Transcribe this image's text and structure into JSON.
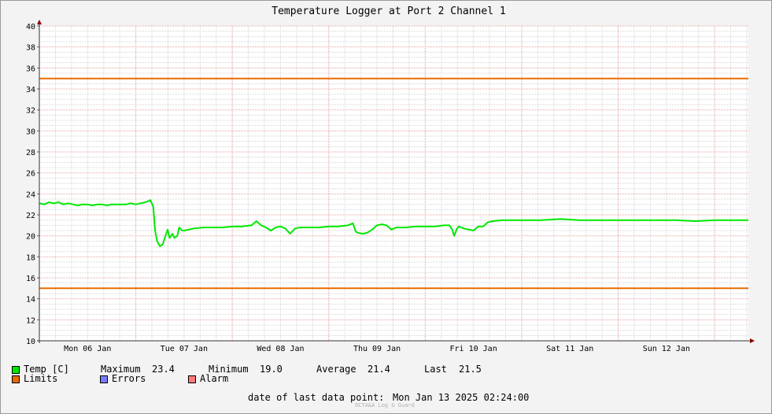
{
  "chart_data": {
    "type": "line",
    "title": "Temperature Logger at Port 2 Channel 1",
    "ylim": [
      10,
      40
    ],
    "yticks": [
      10,
      12,
      14,
      16,
      18,
      20,
      22,
      24,
      26,
      28,
      30,
      32,
      34,
      36,
      38,
      40
    ],
    "xlim": [
      0,
      7.35
    ],
    "xtick_labels": [
      {
        "label": "Mon 06 Jan",
        "pos": 0.5
      },
      {
        "label": "Tue 07 Jan",
        "pos": 1.5
      },
      {
        "label": "Wed 08 Jan",
        "pos": 2.5
      },
      {
        "label": "Thu 09 Jan",
        "pos": 3.5
      },
      {
        "label": "Fri 10 Jan",
        "pos": 4.5
      },
      {
        "label": "Sat 11 Jan",
        "pos": 5.5
      },
      {
        "label": "Sun 12 Jan",
        "pos": 6.5
      }
    ],
    "grid": true,
    "series": [
      {
        "name": "Temp [C]",
        "color": "#00e800",
        "x": [
          0,
          0.05,
          0.1,
          0.15,
          0.2,
          0.25,
          0.3,
          0.35,
          0.4,
          0.45,
          0.5,
          0.55,
          0.6,
          0.65,
          0.7,
          0.75,
          0.8,
          0.85,
          0.9,
          0.95,
          1.0,
          1.05,
          1.1,
          1.15,
          1.18,
          1.2,
          1.22,
          1.25,
          1.28,
          1.3,
          1.33,
          1.35,
          1.38,
          1.4,
          1.43,
          1.45,
          1.48,
          1.5,
          1.55,
          1.6,
          1.7,
          1.8,
          1.9,
          2.0,
          2.1,
          2.2,
          2.25,
          2.3,
          2.35,
          2.4,
          2.45,
          2.5,
          2.55,
          2.6,
          2.65,
          2.7,
          2.8,
          2.9,
          3.0,
          3.1,
          3.2,
          3.25,
          3.28,
          3.3,
          3.35,
          3.4,
          3.45,
          3.5,
          3.55,
          3.6,
          3.65,
          3.7,
          3.8,
          3.9,
          4.0,
          4.1,
          4.2,
          4.25,
          4.28,
          4.3,
          4.33,
          4.35,
          4.4,
          4.45,
          4.5,
          4.55,
          4.6,
          4.65,
          4.7,
          4.8,
          5.0,
          5.2,
          5.4,
          5.6,
          5.8,
          6.0,
          6.2,
          6.4,
          6.6,
          6.8,
          7.0,
          7.2,
          7.35
        ],
        "y": [
          23.1,
          23.0,
          23.2,
          23.1,
          23.2,
          23.0,
          23.1,
          23.0,
          22.9,
          23.0,
          23.0,
          22.9,
          23.0,
          23.0,
          22.9,
          23.0,
          23.0,
          23.0,
          23.0,
          23.1,
          23.0,
          23.1,
          23.2,
          23.4,
          22.8,
          20.5,
          19.5,
          19.0,
          19.2,
          19.8,
          20.6,
          19.8,
          20.2,
          19.8,
          20.0,
          20.8,
          20.5,
          20.5,
          20.6,
          20.7,
          20.8,
          20.8,
          20.8,
          20.9,
          20.9,
          21.0,
          21.4,
          21.0,
          20.8,
          20.5,
          20.8,
          20.9,
          20.7,
          20.2,
          20.7,
          20.8,
          20.8,
          20.8,
          20.9,
          20.9,
          21.0,
          21.2,
          20.4,
          20.3,
          20.2,
          20.3,
          20.6,
          21.0,
          21.1,
          21.0,
          20.6,
          20.8,
          20.8,
          20.9,
          20.9,
          20.9,
          21.0,
          21.0,
          20.6,
          20.0,
          20.7,
          20.9,
          20.7,
          20.6,
          20.5,
          20.9,
          20.9,
          21.3,
          21.4,
          21.5,
          21.5,
          21.5,
          21.6,
          21.5,
          21.5,
          21.5,
          21.5,
          21.5,
          21.5,
          21.4,
          21.5,
          21.5,
          21.5
        ]
      },
      {
        "name": "Limits",
        "color": "#e86b00",
        "x": [
          0,
          7.35
        ],
        "y": [
          35,
          35
        ]
      },
      {
        "name": "Limits",
        "color": "#e86b00",
        "x": [
          0,
          7.35
        ],
        "y": [
          15,
          15
        ]
      }
    ]
  },
  "legend": {
    "temp": {
      "label": "Temp [C]",
      "color": "#00e800"
    },
    "limits": {
      "label": "Limits",
      "color": "#e86b00"
    },
    "errors": {
      "label": "Errors",
      "color": "#7b7bff"
    },
    "alarm": {
      "label": "Alarm",
      "color": "#ff7b7b"
    },
    "stats": {
      "max_label": "Maximum",
      "max_value": "23.4",
      "min_label": "Minimum",
      "min_value": "19.0",
      "avg_label": "Average",
      "avg_value": "21.4",
      "last_label": "Last",
      "last_value": "21.5"
    }
  },
  "footer": {
    "last_point_label": "date of last data point:",
    "last_point_value": "Mon Jan 13 2025 02:24:00",
    "watermark": "OCTA&A Log & Guard"
  }
}
